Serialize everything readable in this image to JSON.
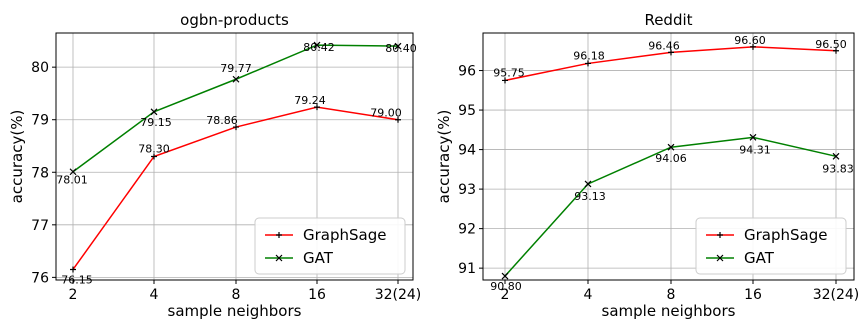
{
  "chart_data": [
    {
      "type": "line",
      "title": "ogbn-products",
      "xlabel": "sample neighbors",
      "ylabel": "accuracy(%)",
      "categories": [
        "2",
        "4",
        "8",
        "16",
        "32(24)"
      ],
      "ylim": [
        75.95,
        80.65
      ],
      "yticks": [
        76,
        77,
        78,
        79,
        80
      ],
      "grid": true,
      "legend_position": "bottom-right",
      "series": [
        {
          "name": "GraphSage",
          "color": "#ff0000",
          "marker": "plus",
          "values": [
            76.15,
            78.3,
            78.86,
            79.24,
            79.0
          ],
          "labels": [
            "76.15",
            "78.30",
            "78.86",
            "79.24",
            "79.00"
          ]
        },
        {
          "name": "GAT",
          "color": "#008000",
          "marker": "x",
          "values": [
            78.01,
            79.15,
            79.77,
            80.42,
            80.4
          ],
          "labels": [
            "78.01",
            "79.15",
            "79.77",
            "80.42",
            "80.40"
          ]
        }
      ]
    },
    {
      "type": "line",
      "title": "Reddit",
      "xlabel": "sample neighbors",
      "ylabel": "accuracy(%)",
      "categories": [
        "2",
        "4",
        "8",
        "16",
        "32(24)"
      ],
      "ylim": [
        90.7,
        96.95
      ],
      "yticks": [
        91,
        92,
        93,
        94,
        95,
        96
      ],
      "grid": true,
      "legend_position": "bottom-right",
      "series": [
        {
          "name": "GraphSage",
          "color": "#ff0000",
          "marker": "plus",
          "values": [
            95.75,
            96.18,
            96.46,
            96.6,
            96.5
          ],
          "labels": [
            "95.75",
            "96.18",
            "96.46",
            "96.60",
            "96.50"
          ]
        },
        {
          "name": "GAT",
          "color": "#008000",
          "marker": "x",
          "values": [
            90.8,
            93.13,
            94.06,
            94.31,
            93.83
          ],
          "labels": [
            "90.80",
            "93.13",
            "94.06",
            "94.31",
            "93.83"
          ]
        }
      ]
    }
  ]
}
